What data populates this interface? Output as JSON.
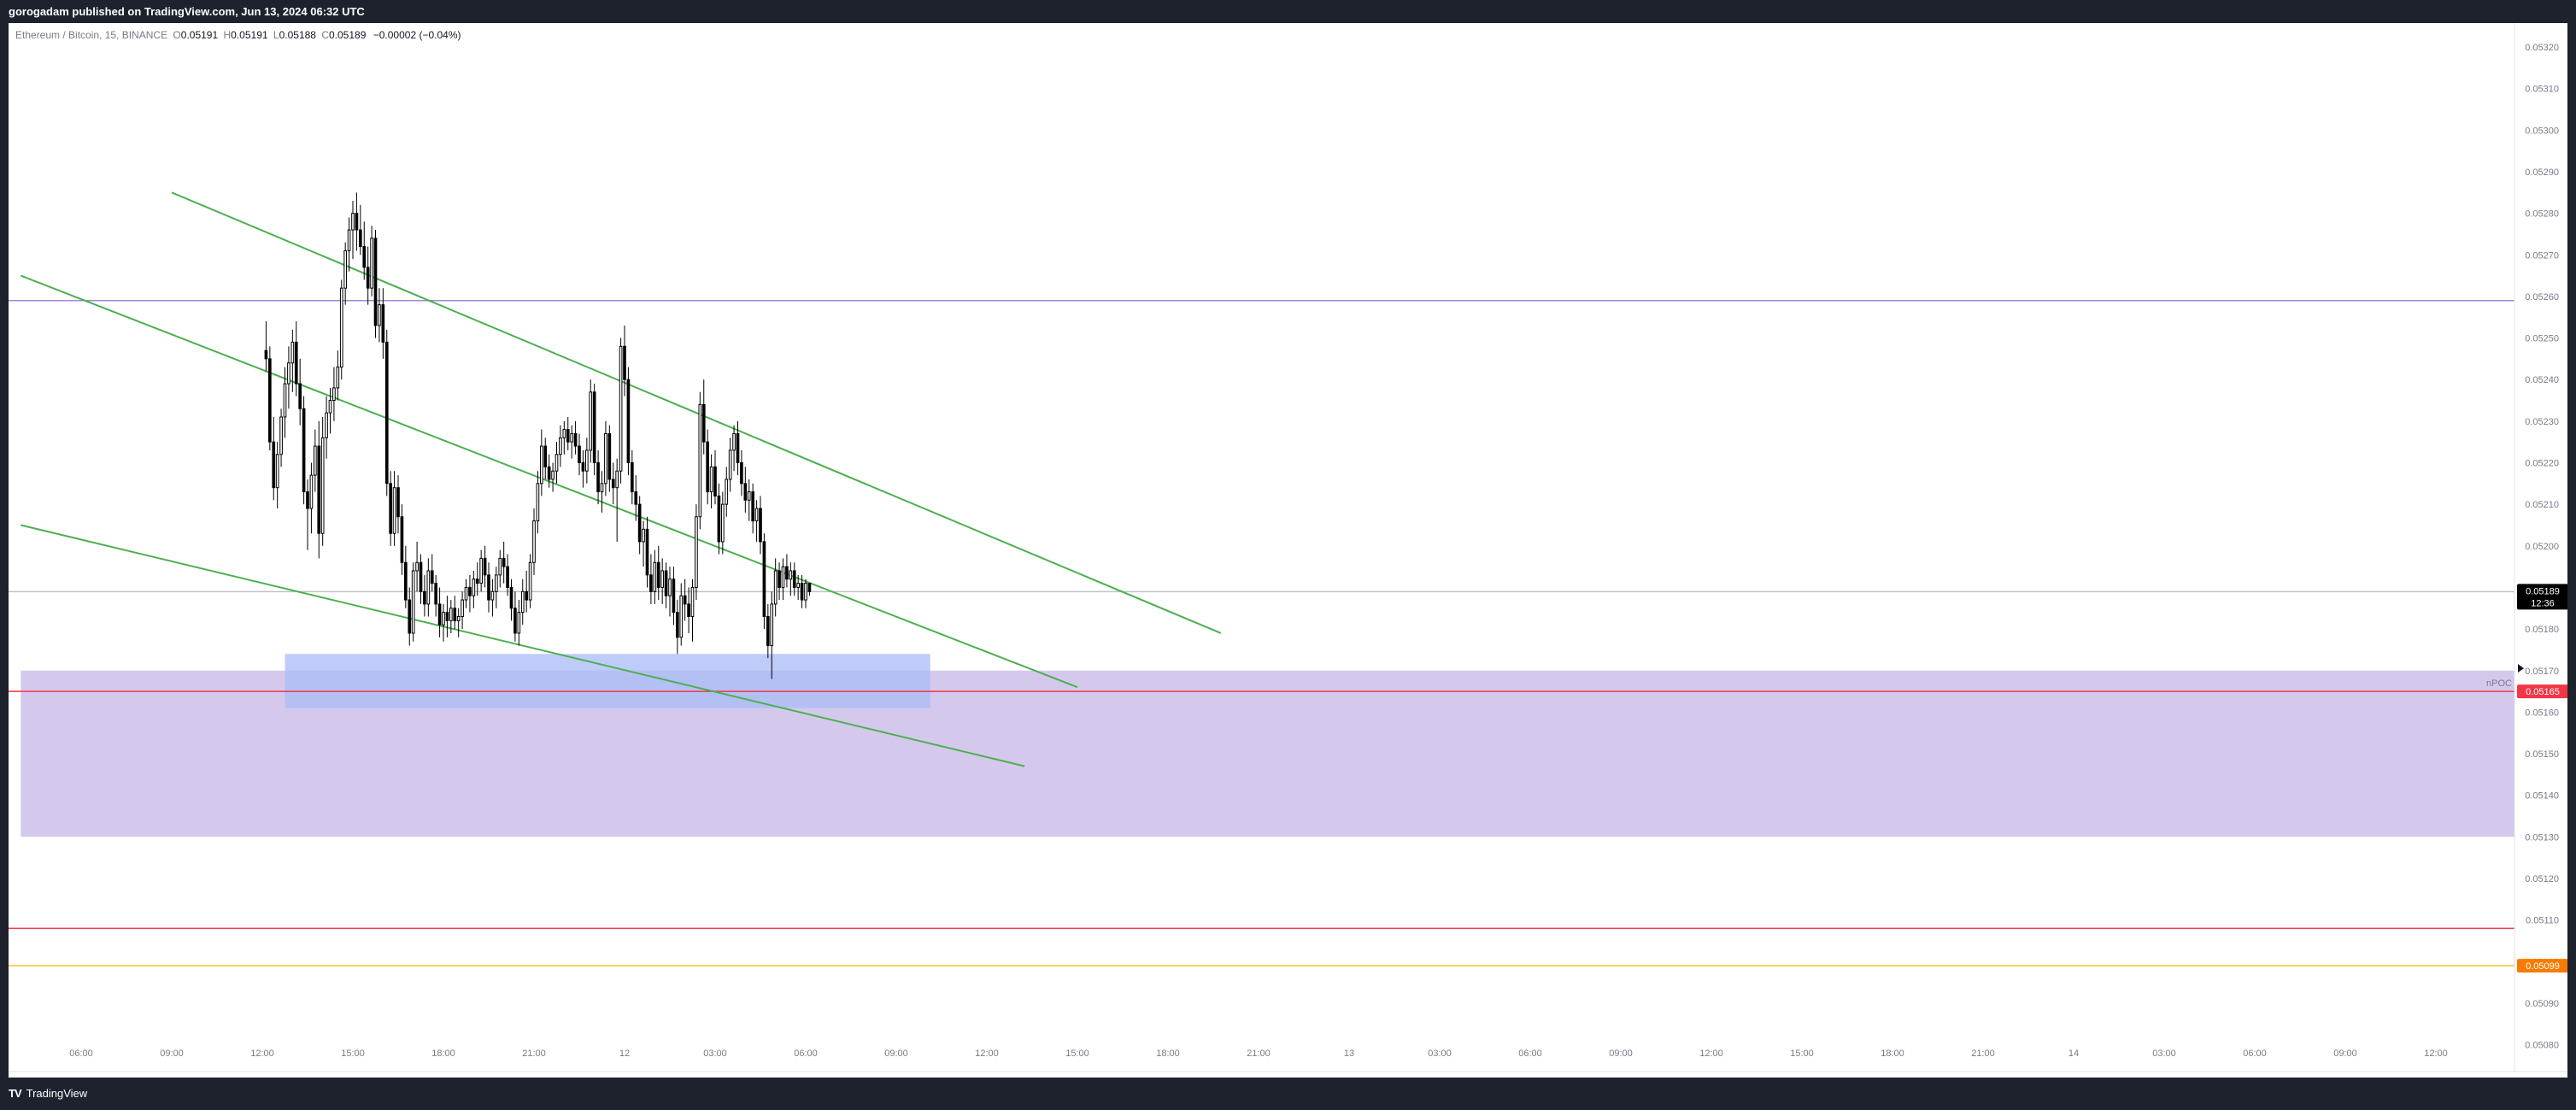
{
  "header": {
    "published_text": "gorogadam published on TradingView.com, Jun 13, 2024 06:32 UTC"
  },
  "legend": {
    "symbol": "Ethereum / Bitcoin, 15, BINANCE",
    "o_label": "O",
    "o_value": "0.05191",
    "h_label": "H",
    "h_value": "0.05191",
    "l_label": "L",
    "l_value": "0.05188",
    "c_label": "C",
    "c_value": "0.05189",
    "change": "−0.00002 (−0.04%)"
  },
  "footer": {
    "brand_logo": "TV",
    "brand_name": "TradingView"
  },
  "colors": {
    "up_candle": "#ffffff",
    "down_candle": "#000000",
    "wick": "#000000",
    "trend_line": "#4caf50",
    "purple_line": "#9c8ad6",
    "red_line": "#f23645",
    "yellow_line": "#f5c518",
    "purple_zone": "#d4c9ec",
    "blue_zone": "#a9bbf7"
  },
  "chart_data": {
    "type": "candlestick",
    "symbol": "ETHBTC",
    "interval": "15",
    "x_ticks": [
      "06:00",
      "09:00",
      "12:00",
      "15:00",
      "18:00",
      "21:00",
      "12",
      "03:00",
      "06:00",
      "09:00",
      "12:00",
      "15:00",
      "18:00",
      "21:00",
      "13",
      "03:00",
      "06:00",
      "09:00",
      "12:00",
      "15:00",
      "18:00",
      "21:00",
      "14",
      "03:00",
      "06:00",
      "09:00",
      "12:00"
    ],
    "y_ticks": [
      "0.05320",
      "0.05310",
      "0.05300",
      "0.05290",
      "0.05280",
      "0.05270",
      "0.05260",
      "0.05250",
      "0.05240",
      "0.05230",
      "0.05220",
      "0.05210",
      "0.05200",
      "0.05190",
      "0.05180",
      "0.05170",
      "0.05160",
      "0.05150",
      "0.05140",
      "0.05130",
      "0.05120",
      "0.05110",
      "0.05100",
      "0.05090",
      "0.05080"
    ],
    "ylim": [
      0.05076,
      0.05325
    ],
    "last_price": "0.05189",
    "countdown": "12:36",
    "npoc_label": "nPOC",
    "npoc_price": "0.05165",
    "support_price": "0.05099",
    "horizontal_lines": [
      {
        "price": 0.05259,
        "color": "purple"
      },
      {
        "price": 0.05189,
        "color": "gray"
      },
      {
        "price": 0.05165,
        "color": "red"
      },
      {
        "price": 0.05108,
        "color": "red"
      },
      {
        "price": 0.05099,
        "color": "yellow"
      }
    ],
    "zones": [
      {
        "from_price": 0.0513,
        "to_price": 0.0517,
        "x_start": "Jun 11 02:00",
        "x_end": "open",
        "color": "purple"
      },
      {
        "from_price": 0.05161,
        "to_price": 0.05174,
        "x_start": "Jun 11 19:30",
        "x_end": "Jun 13 14:15",
        "color": "blue"
      }
    ],
    "trend_lines": [
      {
        "x1": "Jun 11 12:00",
        "y1": 0.05285,
        "x2": "Jun 14 09:30",
        "y2": 0.05179
      },
      {
        "x1": "Jun 11 02:00",
        "y1": 0.05265,
        "x2": "Jun 14 00:00",
        "y2": 0.05166
      },
      {
        "x1": "Jun 11 02:00",
        "y1": 0.05205,
        "x2": "Jun 13 20:30",
        "y2": 0.05147
      }
    ],
    "candles": [
      [
        0.05247,
        0.05254,
        0.05242,
        0.05245
      ],
      [
        0.05245,
        0.05248,
        0.05223,
        0.05225
      ],
      [
        0.05225,
        0.05231,
        0.05211,
        0.05214
      ],
      [
        0.05214,
        0.05225,
        0.05209,
        0.05222
      ],
      [
        0.05222,
        0.05233,
        0.05219,
        0.05231
      ],
      [
        0.05231,
        0.05243,
        0.05226,
        0.05239
      ],
      [
        0.05239,
        0.05248,
        0.05233,
        0.05244
      ],
      [
        0.05244,
        0.05252,
        0.05237,
        0.05249
      ],
      [
        0.05249,
        0.05254,
        0.05236,
        0.05239
      ],
      [
        0.05239,
        0.05245,
        0.05229,
        0.05233
      ],
      [
        0.05233,
        0.05236,
        0.0521,
        0.05213
      ],
      [
        0.05213,
        0.05216,
        0.05199,
        0.05209
      ],
      [
        0.05209,
        0.0522,
        0.05203,
        0.05217
      ],
      [
        0.05217,
        0.05228,
        0.05213,
        0.05224
      ],
      [
        0.05224,
        0.0523,
        0.05197,
        0.05203
      ],
      [
        0.05203,
        0.05231,
        0.052,
        0.05226
      ],
      [
        0.05226,
        0.05236,
        0.05221,
        0.05232
      ],
      [
        0.05232,
        0.05238,
        0.05227,
        0.05235
      ],
      [
        0.05235,
        0.05243,
        0.0523,
        0.05238
      ],
      [
        0.05238,
        0.05247,
        0.05235,
        0.05243
      ],
      [
        0.05243,
        0.05264,
        0.0524,
        0.05262
      ],
      [
        0.05262,
        0.05273,
        0.05258,
        0.05271
      ],
      [
        0.05271,
        0.05279,
        0.05266,
        0.05276
      ],
      [
        0.05276,
        0.05283,
        0.05269,
        0.0528
      ],
      [
        0.0528,
        0.05285,
        0.05271,
        0.05276
      ],
      [
        0.05276,
        0.05282,
        0.0527,
        0.05272
      ],
      [
        0.05272,
        0.05278,
        0.05264,
        0.05267
      ],
      [
        0.05267,
        0.05272,
        0.05258,
        0.05262
      ],
      [
        0.05262,
        0.05277,
        0.0526,
        0.05274
      ],
      [
        0.05274,
        0.05276,
        0.0525,
        0.05253
      ],
      [
        0.05253,
        0.05262,
        0.05249,
        0.05258
      ],
      [
        0.05258,
        0.05262,
        0.05245,
        0.05249
      ],
      [
        0.05249,
        0.05252,
        0.05212,
        0.05215
      ],
      [
        0.05215,
        0.05218,
        0.052,
        0.05203
      ],
      [
        0.05203,
        0.05218,
        0.052,
        0.05214
      ],
      [
        0.05214,
        0.05217,
        0.05203,
        0.05207
      ],
      [
        0.05207,
        0.0521,
        0.05193,
        0.05196
      ],
      [
        0.05196,
        0.052,
        0.05185,
        0.05187
      ],
      [
        0.05187,
        0.0519,
        0.05176,
        0.05179
      ],
      [
        0.05179,
        0.05196,
        0.05177,
        0.05194
      ],
      [
        0.05194,
        0.05201,
        0.05189,
        0.05196
      ],
      [
        0.05196,
        0.05198,
        0.05186,
        0.05189
      ],
      [
        0.05189,
        0.05193,
        0.05183,
        0.05186
      ],
      [
        0.05186,
        0.05197,
        0.05183,
        0.05194
      ],
      [
        0.05194,
        0.05198,
        0.05189,
        0.05191
      ],
      [
        0.05191,
        0.05193,
        0.05183,
        0.05186
      ],
      [
        0.05186,
        0.0519,
        0.05178,
        0.05181
      ],
      [
        0.05181,
        0.05186,
        0.05177,
        0.05184
      ],
      [
        0.05184,
        0.05188,
        0.05178,
        0.05182
      ],
      [
        0.05182,
        0.05187,
        0.05179,
        0.05185
      ],
      [
        0.05185,
        0.05188,
        0.0518,
        0.05182
      ],
      [
        0.05182,
        0.05185,
        0.05178,
        0.05183
      ],
      [
        0.05183,
        0.05189,
        0.0518,
        0.05187
      ],
      [
        0.05187,
        0.05192,
        0.05185,
        0.0519
      ],
      [
        0.0519,
        0.05193,
        0.05184,
        0.05188
      ],
      [
        0.05188,
        0.05194,
        0.05185,
        0.05192
      ],
      [
        0.05192,
        0.05196,
        0.05188,
        0.05191
      ],
      [
        0.05191,
        0.05199,
        0.05189,
        0.05197
      ],
      [
        0.05197,
        0.052,
        0.0519,
        0.05193
      ],
      [
        0.05193,
        0.05196,
        0.05184,
        0.05187
      ],
      [
        0.05187,
        0.05192,
        0.05183,
        0.05189
      ],
      [
        0.05189,
        0.05195,
        0.05185,
        0.05193
      ],
      [
        0.05193,
        0.05199,
        0.0519,
        0.05197
      ],
      [
        0.05197,
        0.05201,
        0.05191,
        0.05195
      ],
      [
        0.05195,
        0.05198,
        0.05188,
        0.0519
      ],
      [
        0.0519,
        0.05192,
        0.05182,
        0.05185
      ],
      [
        0.05185,
        0.05189,
        0.05177,
        0.05179
      ],
      [
        0.05179,
        0.05187,
        0.05176,
        0.05184
      ],
      [
        0.05184,
        0.05192,
        0.05181,
        0.05189
      ],
      [
        0.05189,
        0.05194,
        0.05184,
        0.05187
      ],
      [
        0.05187,
        0.05198,
        0.05185,
        0.05196
      ],
      [
        0.05196,
        0.05209,
        0.05193,
        0.05206
      ],
      [
        0.05206,
        0.05218,
        0.05203,
        0.05215
      ],
      [
        0.05215,
        0.05228,
        0.05212,
        0.05224
      ],
      [
        0.05224,
        0.05226,
        0.05216,
        0.05219
      ],
      [
        0.05219,
        0.05222,
        0.05214,
        0.05216
      ],
      [
        0.05216,
        0.0522,
        0.05213,
        0.05218
      ],
      [
        0.05218,
        0.05225,
        0.05215,
        0.05222
      ],
      [
        0.05222,
        0.05229,
        0.05219,
        0.05226
      ],
      [
        0.05226,
        0.0523,
        0.05222,
        0.05228
      ],
      [
        0.05228,
        0.05231,
        0.05223,
        0.05225
      ],
      [
        0.05225,
        0.05229,
        0.05221,
        0.05227
      ],
      [
        0.05227,
        0.0523,
        0.05222,
        0.05224
      ],
      [
        0.05224,
        0.05227,
        0.05217,
        0.0522
      ],
      [
        0.0522,
        0.05223,
        0.05214,
        0.05218
      ],
      [
        0.05218,
        0.05226,
        0.05215,
        0.05223
      ],
      [
        0.05223,
        0.0524,
        0.0522,
        0.05237
      ],
      [
        0.05237,
        0.05239,
        0.05217,
        0.0522
      ],
      [
        0.0522,
        0.05223,
        0.0521,
        0.05213
      ],
      [
        0.05213,
        0.05218,
        0.05208,
        0.05215
      ],
      [
        0.05215,
        0.0523,
        0.05212,
        0.05227
      ],
      [
        0.05227,
        0.05229,
        0.05213,
        0.05216
      ],
      [
        0.05216,
        0.0522,
        0.0521,
        0.05214
      ],
      [
        0.05214,
        0.05221,
        0.05201,
        0.05218
      ],
      [
        0.05218,
        0.0525,
        0.05215,
        0.05248
      ],
      [
        0.05248,
        0.05253,
        0.05236,
        0.0524
      ],
      [
        0.0524,
        0.05243,
        0.05217,
        0.0522
      ],
      [
        0.0522,
        0.05223,
        0.0521,
        0.05213
      ],
      [
        0.05213,
        0.05217,
        0.05206,
        0.0521
      ],
      [
        0.0521,
        0.05212,
        0.05198,
        0.05201
      ],
      [
        0.05201,
        0.05206,
        0.05195,
        0.05204
      ],
      [
        0.05204,
        0.05207,
        0.0519,
        0.05193
      ],
      [
        0.05193,
        0.05198,
        0.05186,
        0.05189
      ],
      [
        0.05189,
        0.05199,
        0.05186,
        0.05196
      ],
      [
        0.05196,
        0.052,
        0.05187,
        0.0519
      ],
      [
        0.0519,
        0.05197,
        0.05186,
        0.05194
      ],
      [
        0.05194,
        0.05196,
        0.05185,
        0.05188
      ],
      [
        0.05188,
        0.05195,
        0.05183,
        0.05192
      ],
      [
        0.05192,
        0.05195,
        0.05181,
        0.05184
      ],
      [
        0.05184,
        0.05187,
        0.05174,
        0.05178
      ],
      [
        0.05178,
        0.05191,
        0.05176,
        0.05188
      ],
      [
        0.05188,
        0.05192,
        0.05182,
        0.05186
      ],
      [
        0.05186,
        0.0519,
        0.05179,
        0.05183
      ],
      [
        0.05183,
        0.05192,
        0.05177,
        0.0519
      ],
      [
        0.0519,
        0.0521,
        0.05187,
        0.05207
      ],
      [
        0.05207,
        0.05237,
        0.05204,
        0.05234
      ],
      [
        0.05234,
        0.0524,
        0.05222,
        0.05225
      ],
      [
        0.05225,
        0.05228,
        0.0521,
        0.05213
      ],
      [
        0.05213,
        0.05222,
        0.05209,
        0.05219
      ],
      [
        0.05219,
        0.05223,
        0.0521,
        0.05212
      ],
      [
        0.05212,
        0.05215,
        0.05198,
        0.05201
      ],
      [
        0.05201,
        0.05213,
        0.05198,
        0.0521
      ],
      [
        0.0521,
        0.05219,
        0.05207,
        0.05216
      ],
      [
        0.05216,
        0.05226,
        0.05213,
        0.05223
      ],
      [
        0.05223,
        0.05229,
        0.05218,
        0.05227
      ],
      [
        0.05227,
        0.0523,
        0.05217,
        0.0522
      ],
      [
        0.0522,
        0.05223,
        0.05212,
        0.05215
      ],
      [
        0.05215,
        0.05219,
        0.05208,
        0.05211
      ],
      [
        0.05211,
        0.05216,
        0.05206,
        0.05213
      ],
      [
        0.05213,
        0.05215,
        0.05203,
        0.05206
      ],
      [
        0.05206,
        0.05211,
        0.05201,
        0.05209
      ],
      [
        0.05209,
        0.05212,
        0.05198,
        0.05201
      ],
      [
        0.05201,
        0.05203,
        0.0518,
        0.05183
      ],
      [
        0.05183,
        0.05186,
        0.05173,
        0.05176
      ],
      [
        0.05176,
        0.05189,
        0.05168,
        0.05186
      ],
      [
        0.05186,
        0.05197,
        0.05183,
        0.05194
      ],
      [
        0.05194,
        0.05196,
        0.05187,
        0.0519
      ],
      [
        0.0519,
        0.05197,
        0.05187,
        0.05195
      ],
      [
        0.05195,
        0.05198,
        0.0519,
        0.05192
      ],
      [
        0.05192,
        0.05196,
        0.05188,
        0.05194
      ],
      [
        0.05194,
        0.05196,
        0.05188,
        0.0519
      ],
      [
        0.0519,
        0.05193,
        0.05187,
        0.05191
      ],
      [
        0.05191,
        0.05193,
        0.05185,
        0.05187
      ],
      [
        0.05187,
        0.05192,
        0.05185,
        0.05191
      ],
      [
        0.05191,
        0.05191,
        0.05188,
        0.05189
      ]
    ]
  }
}
